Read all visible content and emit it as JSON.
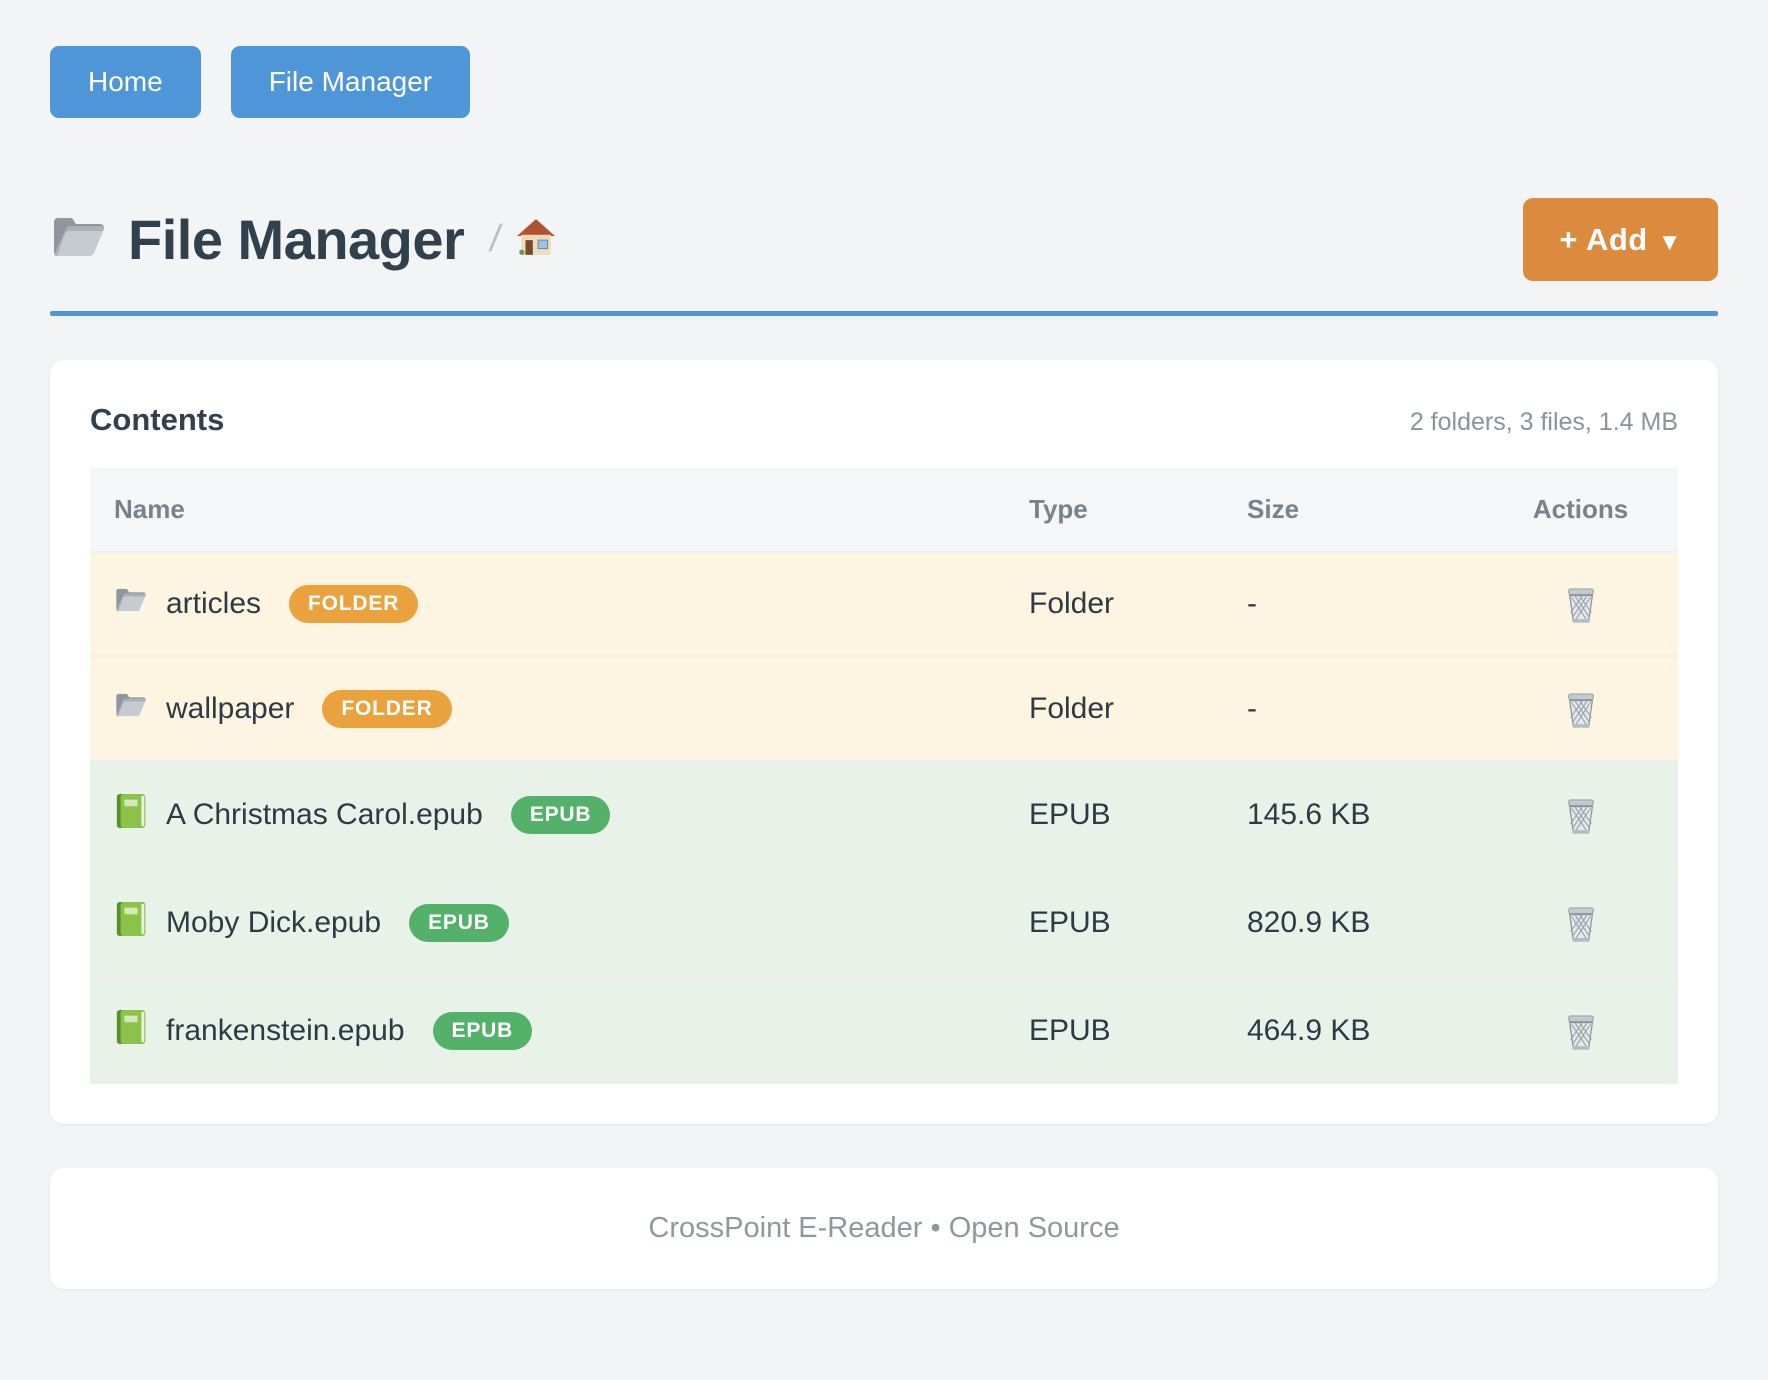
{
  "nav": {
    "buttons": [
      {
        "id": "home",
        "label": "Home"
      },
      {
        "id": "file-manager",
        "label": "File Manager"
      }
    ]
  },
  "header": {
    "title": "File Manager",
    "title_icon": "folder-icon",
    "breadcrumb_separator": "/",
    "breadcrumb_root_icon": "house-icon",
    "add_button_label": "+ Add",
    "add_button_caret": "▼"
  },
  "contents": {
    "title": "Contents",
    "summary": "2 folders, 3 files, 1.4 MB",
    "columns": [
      "Name",
      "Type",
      "Size",
      "Actions"
    ],
    "action_icon": "trash-icon",
    "rows": [
      {
        "name": "articles",
        "icon": "folder-icon",
        "badge": "FOLDER",
        "kind": "folder",
        "type": "Folder",
        "size": "-"
      },
      {
        "name": "wallpaper",
        "icon": "folder-icon",
        "badge": "FOLDER",
        "kind": "folder",
        "type": "Folder",
        "size": "-"
      },
      {
        "name": "A Christmas Carol.epub",
        "icon": "book-icon",
        "badge": "EPUB",
        "kind": "file",
        "type": "EPUB",
        "size": "145.6 KB"
      },
      {
        "name": "Moby Dick.epub",
        "icon": "book-icon",
        "badge": "EPUB",
        "kind": "file",
        "type": "EPUB",
        "size": "820.9 KB"
      },
      {
        "name": "frankenstein.epub",
        "icon": "book-icon",
        "badge": "EPUB",
        "kind": "file",
        "type": "EPUB",
        "size": "464.9 KB"
      }
    ]
  },
  "footer": {
    "text": "CrossPoint E-Reader • Open Source"
  },
  "colors": {
    "nav_button": "#4e96d8",
    "add_button": "#dc8a3e",
    "divider": "#4e96d8",
    "folder_badge": "#e9a23c",
    "epub_badge": "#54b169",
    "folder_row_bg": "#fdf5e1",
    "file_row_bg": "#e8f2e8"
  }
}
